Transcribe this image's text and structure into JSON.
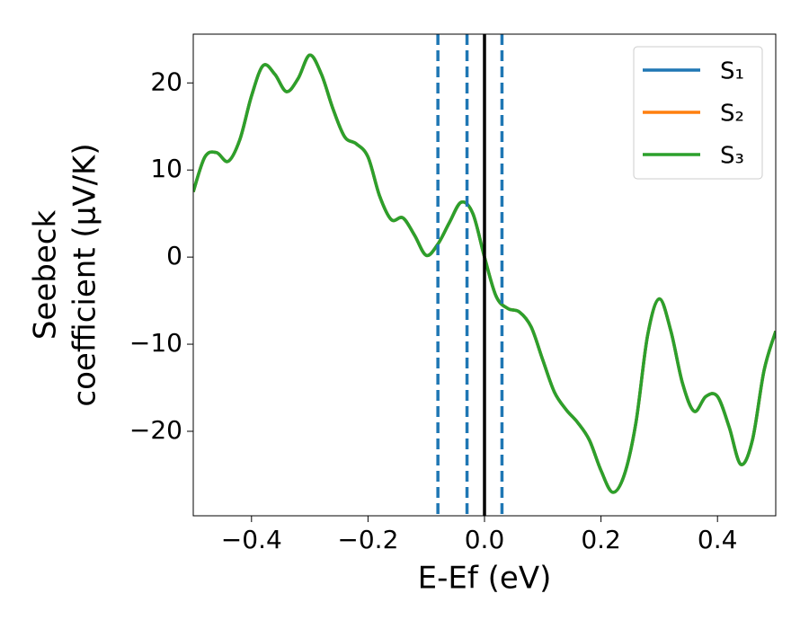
{
  "chart_data": {
    "type": "line",
    "xlabel": "E-Ef (eV)",
    "ylabel": [
      "Seebeck",
      "coefficient  (μV/K)"
    ],
    "x": [
      -0.5,
      -0.48,
      -0.46,
      -0.44,
      -0.42,
      -0.4,
      -0.38,
      -0.36,
      -0.34,
      -0.32,
      -0.3,
      -0.28,
      -0.26,
      -0.24,
      -0.22,
      -0.2,
      -0.18,
      -0.16,
      -0.14,
      -0.12,
      -0.1,
      -0.08,
      -0.06,
      -0.04,
      -0.02,
      0,
      0.02,
      0.04,
      0.06,
      0.08,
      0.1,
      0.12,
      0.14,
      0.16,
      0.18,
      0.2,
      0.22,
      0.24,
      0.26,
      0.28,
      0.3,
      0.32,
      0.34,
      0.36,
      0.38,
      0.4,
      0.42,
      0.44,
      0.46,
      0.48,
      0.5
    ],
    "series": [
      {
        "name": "S₁",
        "color": "#1f77b4",
        "values": [
          7.5,
          11.5,
          12.0,
          11.0,
          13.5,
          18.5,
          22.0,
          21.0,
          19.0,
          20.5,
          23.2,
          21.0,
          17.0,
          13.8,
          13.0,
          11.5,
          7.0,
          4.3,
          4.5,
          2.5,
          0.2,
          1.5,
          4.0,
          6.3,
          5.0,
          0.0,
          -4.5,
          -5.9,
          -6.3,
          -8.0,
          -11.8,
          -15.5,
          -17.5,
          -19.0,
          -21.0,
          -24.5,
          -27.0,
          -25.0,
          -19.0,
          -9.0,
          -4.8,
          -8.5,
          -14.5,
          -17.7,
          -16.0,
          -16.0,
          -19.5,
          -23.8,
          -21.0,
          -13.0,
          -8.5
        ]
      },
      {
        "name": "S₂",
        "color": "#ff7f0e",
        "values": [
          7.5,
          11.5,
          12.0,
          11.0,
          13.5,
          18.5,
          22.0,
          21.0,
          19.0,
          20.5,
          23.2,
          21.0,
          17.0,
          13.8,
          13.0,
          11.5,
          7.0,
          4.3,
          4.5,
          2.5,
          0.2,
          1.5,
          4.0,
          6.3,
          5.0,
          0.0,
          -4.5,
          -5.9,
          -6.3,
          -8.0,
          -11.8,
          -15.5,
          -17.5,
          -19.0,
          -21.0,
          -24.5,
          -27.0,
          -25.0,
          -19.0,
          -9.0,
          -4.8,
          -8.5,
          -14.5,
          -17.7,
          -16.0,
          -16.0,
          -19.5,
          -23.8,
          -21.0,
          -13.0,
          -8.5
        ]
      },
      {
        "name": "S₃",
        "color": "#2ca02c",
        "values": [
          7.5,
          11.5,
          12.0,
          11.0,
          13.5,
          18.5,
          22.0,
          21.0,
          19.0,
          20.5,
          23.2,
          21.0,
          17.0,
          13.8,
          13.0,
          11.5,
          7.0,
          4.3,
          4.5,
          2.5,
          0.2,
          1.5,
          4.0,
          6.3,
          5.0,
          0.0,
          -4.5,
          -5.9,
          -6.3,
          -8.0,
          -11.8,
          -15.5,
          -17.5,
          -19.0,
          -21.0,
          -24.5,
          -27.0,
          -25.0,
          -19.0,
          -9.0,
          -4.8,
          -8.5,
          -14.5,
          -17.7,
          -16.0,
          -16.0,
          -19.5,
          -23.8,
          -21.0,
          -13.0,
          -8.5
        ]
      }
    ],
    "vlines": [
      {
        "x": -0.08,
        "color": "#1f77b4",
        "style": "dashed"
      },
      {
        "x": -0.03,
        "color": "#1f77b4",
        "style": "dashed"
      },
      {
        "x": 0.03,
        "color": "#1f77b4",
        "style": "dashed"
      },
      {
        "x": 0,
        "color": "#000000",
        "style": "solid"
      }
    ],
    "xlim": [
      -0.5,
      0.5
    ],
    "ylim": [
      -29.7,
      25.6
    ],
    "xticks": [
      {
        "value": -0.4,
        "label": "−0.4"
      },
      {
        "value": -0.2,
        "label": "−0.2"
      },
      {
        "value": 0,
        "label": "0.0"
      },
      {
        "value": 0.2,
        "label": "0.2"
      },
      {
        "value": 0.4,
        "label": "0.4"
      }
    ],
    "yticks": [
      {
        "value": -20,
        "label": "−20"
      },
      {
        "value": -10,
        "label": "−10"
      },
      0,
      10,
      20
    ],
    "legend": "upper right",
    "grid": false
  }
}
